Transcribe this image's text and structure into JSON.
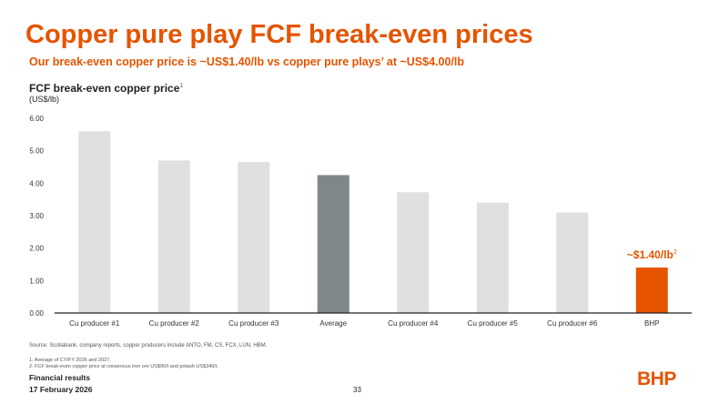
{
  "slide": {
    "title": "Copper pure play FCF break-even prices",
    "subtitle": "Our break-even copper price is ~US$1.40/lb vs copper pure plays’ at ~US$4.00/lb",
    "source": "Source: Scotiabank, company reports, copper producers include ANTO, FM, CS, FCX, LUN, HBM.",
    "footnotes": [
      "1. Average of CY/FY 2026 and 2027.",
      "2. FCF break-even copper price at consensus iron ore US$90/t and potash US$340/t."
    ],
    "footer_line1": "Financial results",
    "footer_line2": "17 February 2026",
    "page_number": "33",
    "logo": "BHP"
  },
  "colors": {
    "accent": "#e65400",
    "bar_gray": "#e0e0e0",
    "bar_average": "#7f8789",
    "axis": "#222222"
  },
  "chart_data": {
    "type": "bar",
    "title": "FCF break-even copper price",
    "title_superscript": "1",
    "ylabel": "(US$/lb)",
    "xlabel": "",
    "ylim": [
      0,
      6
    ],
    "yticks": [
      "0.00",
      "1.00",
      "2.00",
      "3.00",
      "4.00",
      "5.00",
      "6.00"
    ],
    "categories": [
      "Cu producer #1",
      "Cu producer #2",
      "Cu producer #3",
      "Average",
      "Cu producer #4",
      "Cu producer #5",
      "Cu producer #6",
      "BHP"
    ],
    "values": [
      5.6,
      4.7,
      4.65,
      4.25,
      3.72,
      3.4,
      3.1,
      1.4
    ],
    "highlight_annotation": {
      "category": "BHP",
      "text": "~$1.40/lb",
      "superscript": "2"
    },
    "grid": false,
    "legend": "none"
  }
}
